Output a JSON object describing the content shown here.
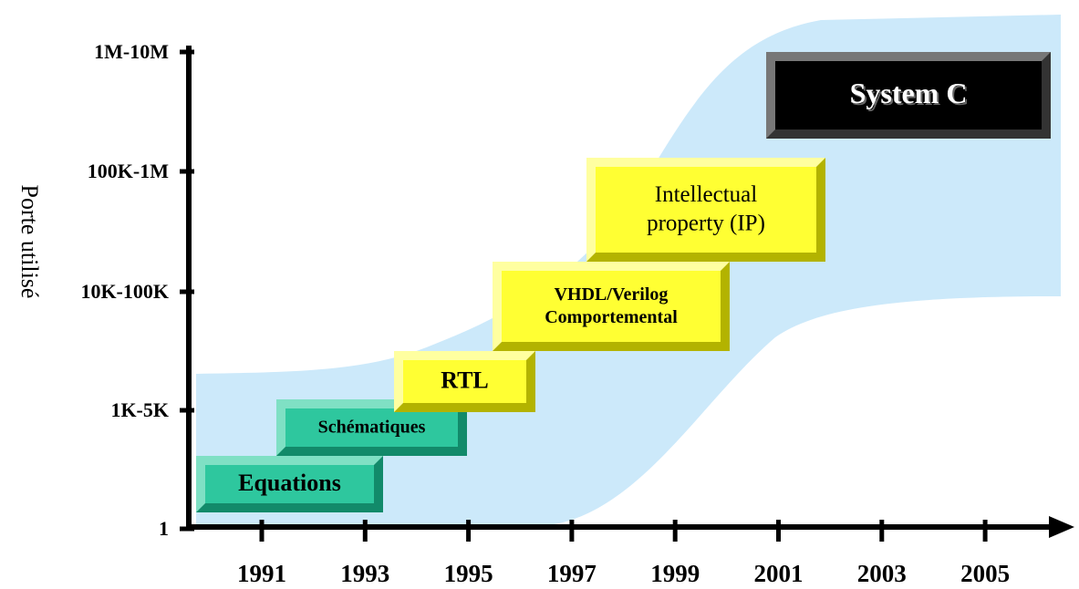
{
  "y_axis": {
    "title": "Porte utilisé",
    "labels": [
      "1M-10M",
      "100K-1M",
      "10K-100K",
      "1K-5K",
      "1"
    ]
  },
  "x_axis": {
    "labels": [
      "1991",
      "1993",
      "1995",
      "1997",
      "1999",
      "2001",
      "2003",
      "2005"
    ]
  },
  "boxes": [
    {
      "lines": [
        "Equations"
      ]
    },
    {
      "lines": [
        "Schématiques"
      ]
    },
    {
      "lines": [
        "RTL"
      ]
    },
    {
      "lines": [
        "VHDL/Verilog",
        "Comportemental"
      ]
    },
    {
      "lines": [
        "Intellectual",
        "property (IP)"
      ]
    },
    {
      "lines": [
        "System C"
      ]
    }
  ]
}
